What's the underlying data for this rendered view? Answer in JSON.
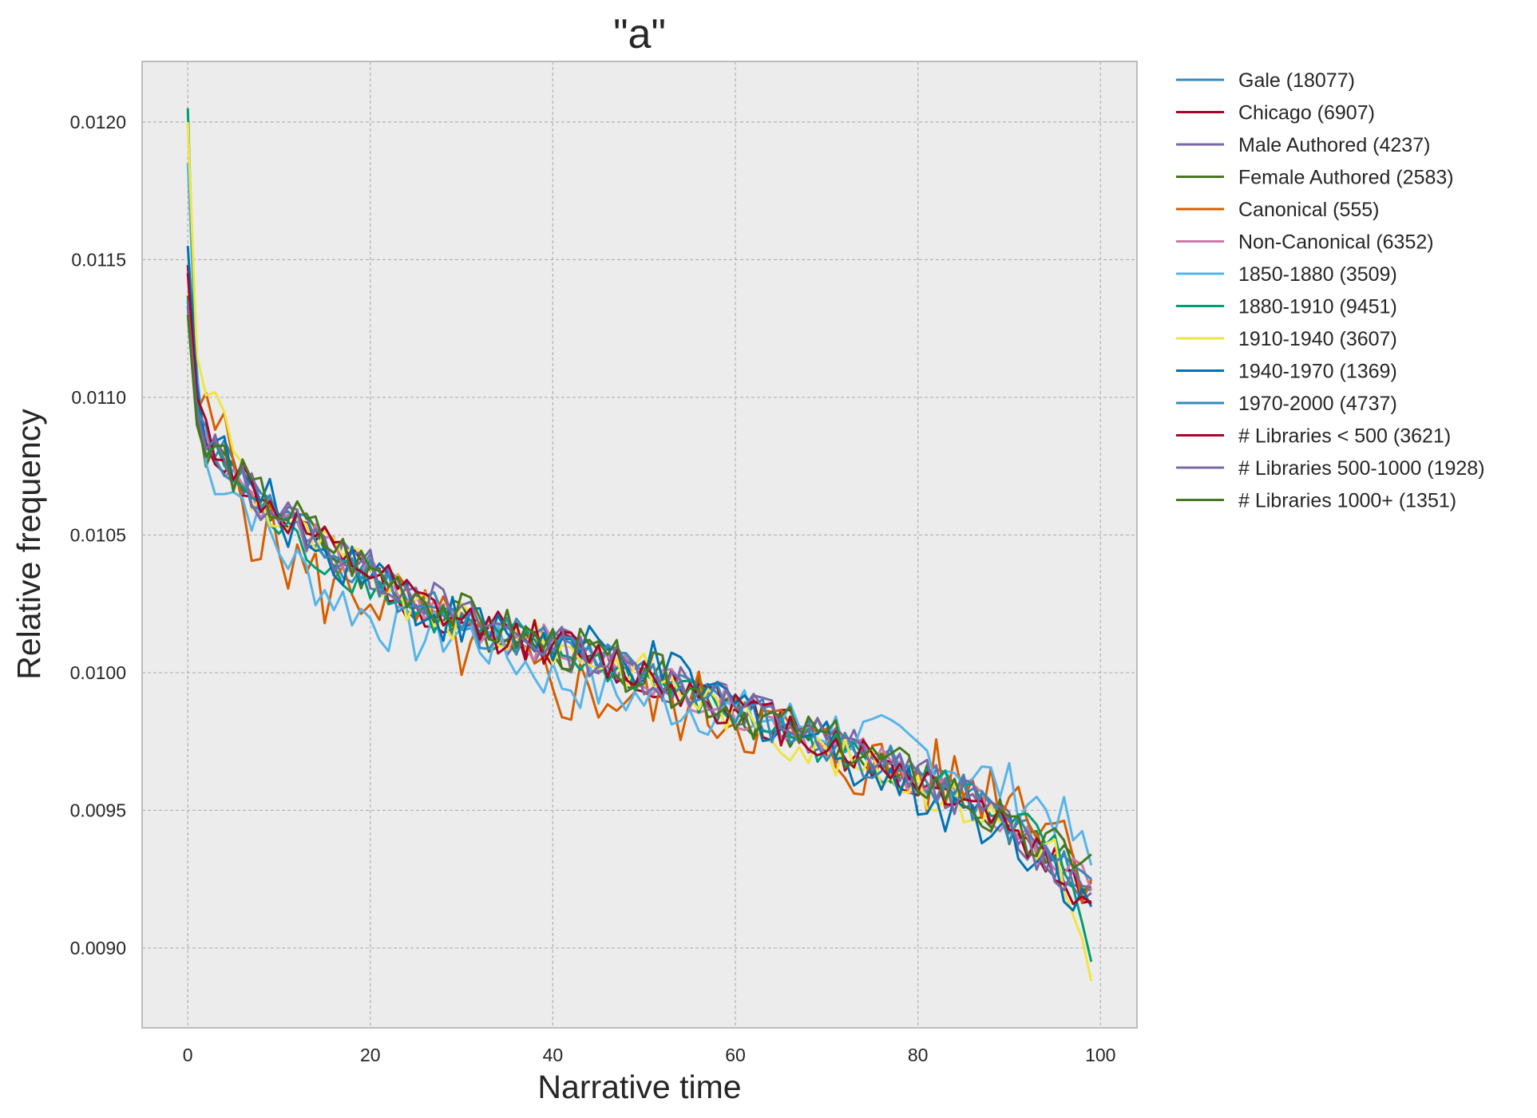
{
  "chart_data": {
    "type": "line",
    "title": "\"a\"",
    "xlabel": "Narrative time",
    "ylabel": "Relative frequency",
    "xlim": [
      -5,
      104
    ],
    "ylim": [
      0.00871,
      0.01222
    ],
    "xticks": [
      0,
      20,
      40,
      60,
      80,
      100
    ],
    "xtick_labels": [
      "0",
      "20",
      "40",
      "60",
      "80",
      "100"
    ],
    "yticks": [
      0.009,
      0.0095,
      0.01,
      0.0105,
      0.011,
      0.0115,
      0.012
    ],
    "ytick_labels": [
      "0.0090",
      "0.0095",
      "0.0100",
      "0.0105",
      "0.0110",
      "0.0115",
      "0.0120"
    ],
    "grid": true,
    "legend_position": "outside-right",
    "background_color": "#ececec",
    "series": [
      {
        "name": "Gale  (18077)",
        "color": "#348abd",
        "anchors": [
          [
            0,
            0.01135
          ],
          [
            1,
            0.01096
          ],
          [
            2,
            0.01083
          ],
          [
            4,
            0.01078
          ],
          [
            7,
            0.01065
          ],
          [
            10,
            0.01057
          ],
          [
            15,
            0.01045
          ],
          [
            20,
            0.01036
          ],
          [
            25,
            0.01025
          ],
          [
            30,
            0.01018
          ],
          [
            40,
            0.0101
          ],
          [
            50,
            0.01
          ],
          [
            60,
            0.00987
          ],
          [
            70,
            0.00975
          ],
          [
            80,
            0.00962
          ],
          [
            85,
            0.00955
          ],
          [
            90,
            0.00945
          ],
          [
            95,
            0.00932
          ],
          [
            99,
            0.00921
          ]
        ],
        "noise": 7e-05,
        "seed": 1
      },
      {
        "name": "Chicago  (6907)",
        "color": "#a60628",
        "anchors": [
          [
            0,
            0.01148
          ],
          [
            1,
            0.011
          ],
          [
            2,
            0.01085
          ],
          [
            4,
            0.01078
          ],
          [
            7,
            0.01065
          ],
          [
            10,
            0.01057
          ],
          [
            15,
            0.01045
          ],
          [
            20,
            0.01036
          ],
          [
            25,
            0.01025
          ],
          [
            30,
            0.01018
          ],
          [
            40,
            0.0101
          ],
          [
            50,
            0.01
          ],
          [
            60,
            0.00987
          ],
          [
            70,
            0.00975
          ],
          [
            80,
            0.00962
          ],
          [
            85,
            0.00955
          ],
          [
            90,
            0.00945
          ],
          [
            95,
            0.0093
          ],
          [
            99,
            0.00917
          ]
        ],
        "noise": 8e-05,
        "seed": 2
      },
      {
        "name": "Male Authored  (4237)",
        "color": "#7a68a6",
        "anchors": [
          [
            0,
            0.01133
          ],
          [
            1,
            0.01094
          ],
          [
            2,
            0.01082
          ],
          [
            4,
            0.01077
          ],
          [
            7,
            0.01065
          ],
          [
            10,
            0.01057
          ],
          [
            15,
            0.01045
          ],
          [
            20,
            0.01036
          ],
          [
            25,
            0.01026
          ],
          [
            30,
            0.01018
          ],
          [
            40,
            0.0101
          ],
          [
            50,
            0.01
          ],
          [
            60,
            0.00987
          ],
          [
            70,
            0.00976
          ],
          [
            80,
            0.00962
          ],
          [
            85,
            0.00955
          ],
          [
            90,
            0.00944
          ],
          [
            95,
            0.0093
          ],
          [
            99,
            0.0092
          ]
        ],
        "noise": 8e-05,
        "seed": 3
      },
      {
        "name": "Female Authored  (2583)",
        "color": "#467821",
        "anchors": [
          [
            0,
            0.01137
          ],
          [
            1,
            0.01095
          ],
          [
            2,
            0.01082
          ],
          [
            4,
            0.01078
          ],
          [
            7,
            0.01065
          ],
          [
            10,
            0.01058
          ],
          [
            15,
            0.01046
          ],
          [
            20,
            0.01036
          ],
          [
            25,
            0.01025
          ],
          [
            30,
            0.01018
          ],
          [
            40,
            0.0101
          ],
          [
            50,
            0.01
          ],
          [
            60,
            0.00987
          ],
          [
            70,
            0.00975
          ],
          [
            80,
            0.00962
          ],
          [
            85,
            0.00955
          ],
          [
            90,
            0.00944
          ],
          [
            95,
            0.00932
          ],
          [
            99,
            0.00924
          ]
        ],
        "noise": 8e-05,
        "seed": 4
      },
      {
        "name": "Canonical  (555)",
        "color": "#d55e00",
        "anchors": [
          [
            0,
            0.01133
          ],
          [
            1,
            0.01095
          ],
          [
            2,
            0.0109
          ],
          [
            4,
            0.01085
          ],
          [
            7,
            0.01055
          ],
          [
            10,
            0.01045
          ],
          [
            15,
            0.0103
          ],
          [
            20,
            0.0103
          ],
          [
            25,
            0.0102
          ],
          [
            30,
            0.0101
          ],
          [
            40,
            0.00995
          ],
          [
            50,
            0.0099
          ],
          [
            60,
            0.00985
          ],
          [
            70,
            0.0097
          ],
          [
            80,
            0.00962
          ],
          [
            85,
            0.0096
          ],
          [
            90,
            0.00958
          ],
          [
            95,
            0.00948
          ],
          [
            99,
            0.00925
          ]
        ],
        "noise": 0.00015,
        "seed": 5
      },
      {
        "name": "Non-Canonical  (6352)",
        "color": "#cc79a7",
        "anchors": [
          [
            0,
            0.01135
          ],
          [
            1,
            0.01096
          ],
          [
            2,
            0.01083
          ],
          [
            4,
            0.01078
          ],
          [
            7,
            0.01065
          ],
          [
            10,
            0.01057
          ],
          [
            15,
            0.01045
          ],
          [
            20,
            0.01036
          ],
          [
            25,
            0.01025
          ],
          [
            30,
            0.01018
          ],
          [
            40,
            0.0101
          ],
          [
            50,
            0.01
          ],
          [
            60,
            0.00987
          ],
          [
            70,
            0.00975
          ],
          [
            80,
            0.00962
          ],
          [
            85,
            0.00955
          ],
          [
            90,
            0.00945
          ],
          [
            95,
            0.00932
          ],
          [
            99,
            0.00921
          ]
        ],
        "noise": 7e-05,
        "seed": 6
      },
      {
        "name": "1850-1880  (3509)",
        "color": "#56b4e9",
        "anchors": [
          [
            0,
            0.01185
          ],
          [
            1,
            0.0111
          ],
          [
            2,
            0.01075
          ],
          [
            4,
            0.0107
          ],
          [
            7,
            0.0106
          ],
          [
            10,
            0.01045
          ],
          [
            15,
            0.0103
          ],
          [
            20,
            0.0102
          ],
          [
            25,
            0.01012
          ],
          [
            30,
            0.01015
          ],
          [
            40,
            0.00998
          ],
          [
            50,
            0.0099
          ],
          [
            60,
            0.00985
          ],
          [
            70,
            0.0098
          ],
          [
            80,
            0.00972
          ],
          [
            85,
            0.00965
          ],
          [
            90,
            0.00958
          ],
          [
            95,
            0.0095
          ],
          [
            99,
            0.0093
          ]
        ],
        "noise": 0.0001,
        "seed": 7
      },
      {
        "name": "1880-1910  (9451)",
        "color": "#009e73",
        "anchors": [
          [
            0,
            0.01205
          ],
          [
            1,
            0.011
          ],
          [
            2,
            0.0108
          ],
          [
            4,
            0.01076
          ],
          [
            7,
            0.01062
          ],
          [
            10,
            0.01052
          ],
          [
            15,
            0.0104
          ],
          [
            20,
            0.01033
          ],
          [
            25,
            0.01022
          ],
          [
            30,
            0.01017
          ],
          [
            40,
            0.01008
          ],
          [
            50,
            0.00998
          ],
          [
            60,
            0.00985
          ],
          [
            70,
            0.00973
          ],
          [
            80,
            0.00962
          ],
          [
            85,
            0.00957
          ],
          [
            90,
            0.00948
          ],
          [
            95,
            0.00935
          ],
          [
            99,
            0.00895
          ]
        ],
        "noise": 7e-05,
        "seed": 8
      },
      {
        "name": "1910-1940  (3607)",
        "color": "#f0e442",
        "anchors": [
          [
            0,
            0.012
          ],
          [
            1,
            0.01115
          ],
          [
            2,
            0.01105
          ],
          [
            4,
            0.01092
          ],
          [
            7,
            0.01065
          ],
          [
            10,
            0.01055
          ],
          [
            15,
            0.01045
          ],
          [
            20,
            0.01036
          ],
          [
            25,
            0.01022
          ],
          [
            30,
            0.01018
          ],
          [
            40,
            0.0101
          ],
          [
            50,
            0.01
          ],
          [
            60,
            0.00985
          ],
          [
            70,
            0.0097
          ],
          [
            80,
            0.0096
          ],
          [
            85,
            0.00952
          ],
          [
            90,
            0.00945
          ],
          [
            95,
            0.00935
          ],
          [
            99,
            0.00888
          ]
        ],
        "noise": 8e-05,
        "seed": 9
      },
      {
        "name": "1940-1970  (1369)",
        "color": "#0072b2",
        "anchors": [
          [
            0,
            0.01155
          ],
          [
            1,
            0.01105
          ],
          [
            2,
            0.0109
          ],
          [
            4,
            0.01078
          ],
          [
            7,
            0.01065
          ],
          [
            10,
            0.01058
          ],
          [
            15,
            0.01043
          ],
          [
            20,
            0.0104
          ],
          [
            25,
            0.01025
          ],
          [
            30,
            0.01018
          ],
          [
            40,
            0.0101
          ],
          [
            50,
            0.01003
          ],
          [
            60,
            0.00988
          ],
          [
            70,
            0.00975
          ],
          [
            80,
            0.00955
          ],
          [
            85,
            0.0095
          ],
          [
            90,
            0.00942
          ],
          [
            95,
            0.0093
          ],
          [
            99,
            0.00915
          ]
        ],
        "noise": 0.0001,
        "seed": 10
      },
      {
        "name": "1970-2000  (4737)",
        "color": "#348abd",
        "anchors": [
          [
            0,
            0.01135
          ],
          [
            1,
            0.01095
          ],
          [
            2,
            0.01083
          ],
          [
            4,
            0.01078
          ],
          [
            7,
            0.01065
          ],
          [
            10,
            0.01057
          ],
          [
            15,
            0.01045
          ],
          [
            20,
            0.01036
          ],
          [
            25,
            0.01025
          ],
          [
            30,
            0.01018
          ],
          [
            40,
            0.0101
          ],
          [
            50,
            0.01
          ],
          [
            60,
            0.00987
          ],
          [
            70,
            0.00975
          ],
          [
            80,
            0.00962
          ],
          [
            85,
            0.00955
          ],
          [
            90,
            0.00945
          ],
          [
            95,
            0.00932
          ],
          [
            99,
            0.00925
          ]
        ],
        "noise": 8e-05,
        "seed": 11
      },
      {
        "name": "# Libraries < 500  (3621)",
        "color": "#a60628",
        "anchors": [
          [
            0,
            0.01145
          ],
          [
            1,
            0.011
          ],
          [
            2,
            0.01088
          ],
          [
            4,
            0.0108
          ],
          [
            7,
            0.01066
          ],
          [
            10,
            0.01058
          ],
          [
            15,
            0.01045
          ],
          [
            20,
            0.01036
          ],
          [
            25,
            0.01025
          ],
          [
            30,
            0.01018
          ],
          [
            40,
            0.0101
          ],
          [
            50,
            0.01
          ],
          [
            60,
            0.00987
          ],
          [
            70,
            0.00975
          ],
          [
            80,
            0.00962
          ],
          [
            85,
            0.00955
          ],
          [
            90,
            0.00945
          ],
          [
            95,
            0.00928
          ],
          [
            99,
            0.00916
          ]
        ],
        "noise": 8e-05,
        "seed": 12
      },
      {
        "name": "# Libraries 500-1000  (1928)",
        "color": "#7a68a6",
        "anchors": [
          [
            0,
            0.01133
          ],
          [
            1,
            0.01095
          ],
          [
            2,
            0.0108
          ],
          [
            4,
            0.01077
          ],
          [
            7,
            0.01065
          ],
          [
            10,
            0.01058
          ],
          [
            15,
            0.01046
          ],
          [
            20,
            0.01037
          ],
          [
            25,
            0.0103
          ],
          [
            30,
            0.0102
          ],
          [
            40,
            0.0101
          ],
          [
            50,
            0.01
          ],
          [
            60,
            0.00988
          ],
          [
            70,
            0.00976
          ],
          [
            80,
            0.00963
          ],
          [
            85,
            0.00955
          ],
          [
            90,
            0.00944
          ],
          [
            95,
            0.0093
          ],
          [
            99,
            0.00922
          ]
        ],
        "noise": 8e-05,
        "seed": 13
      },
      {
        "name": "# Libraries 1000+  (1351)",
        "color": "#467821",
        "anchors": [
          [
            0,
            0.0113
          ],
          [
            1,
            0.0109
          ],
          [
            2,
            0.0108
          ],
          [
            4,
            0.01078
          ],
          [
            7,
            0.01065
          ],
          [
            10,
            0.0106
          ],
          [
            15,
            0.01048
          ],
          [
            20,
            0.01037
          ],
          [
            25,
            0.0103
          ],
          [
            30,
            0.0102
          ],
          [
            40,
            0.0101
          ],
          [
            50,
            0.01
          ],
          [
            60,
            0.00987
          ],
          [
            70,
            0.00975
          ],
          [
            80,
            0.00962
          ],
          [
            85,
            0.00955
          ],
          [
            90,
            0.0094
          ],
          [
            95,
            0.00935
          ],
          [
            99,
            0.00934
          ]
        ],
        "noise": 9e-05,
        "seed": 14
      }
    ]
  }
}
